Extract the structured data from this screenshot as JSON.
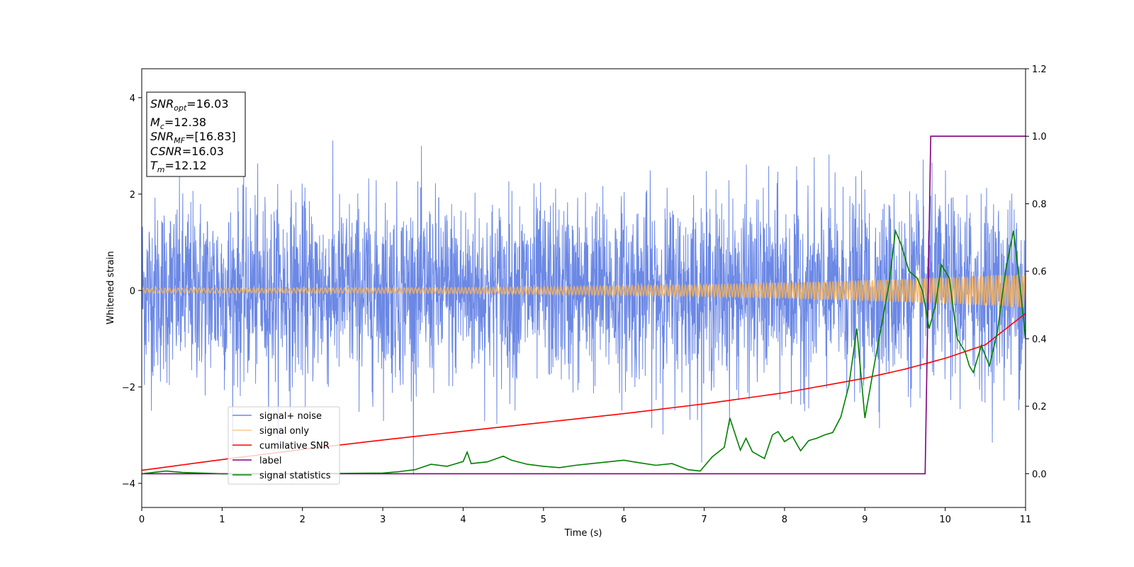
{
  "chart_data": {
    "type": "line",
    "title": "",
    "xlabel": "Time (s)",
    "ylabel": "Whitened strain",
    "xlim": [
      0,
      11
    ],
    "ylim": [
      -4.5,
      4.6
    ],
    "y2lim": [
      -0.1,
      1.2
    ],
    "xticks": [
      "0",
      "1",
      "2",
      "3",
      "4",
      "5",
      "6",
      "7",
      "8",
      "9",
      "10",
      "11"
    ],
    "yticks": [
      "4",
      "2",
      "0",
      "−2",
      "−4"
    ],
    "y2ticks": [
      "1.2",
      "1.0",
      "0.8",
      "0.6",
      "0.4",
      "0.2",
      "0.0"
    ],
    "grid": false,
    "legend_position": "lower-left",
    "colors": {
      "signal_noise": "#6b88e5",
      "signal_only": "#f5b25a",
      "cumulative_snr": "#ff0000",
      "label": "#800080",
      "signal_statistics": "#008000"
    },
    "series": [
      {
        "name": "signal+ noise",
        "axis": "left",
        "description_type": "noise",
        "amplitude_std": 0.95,
        "min": -4.1,
        "max": 4.15,
        "x_range": [
          0,
          11
        ]
      },
      {
        "name": "signal only",
        "axis": "left",
        "description_type": "chirp",
        "amplitude_start": 0.05,
        "amplitude_end": 0.35,
        "x_range": [
          0,
          11
        ]
      },
      {
        "name": "cumilative SNR",
        "axis": "right",
        "x": [
          0,
          1,
          2,
          3,
          4,
          5,
          6,
          7,
          8,
          9,
          9.5,
          10,
          10.5,
          11
        ],
        "y": [
          0.01,
          0.042,
          0.072,
          0.1,
          0.126,
          0.152,
          0.178,
          0.207,
          0.24,
          0.283,
          0.31,
          0.342,
          0.382,
          0.475
        ]
      },
      {
        "name": "label",
        "axis": "right",
        "x": [
          0,
          9.75,
          9.82,
          11
        ],
        "y": [
          0,
          0,
          1,
          1
        ]
      },
      {
        "name": "signal statistics",
        "axis": "right",
        "x": [
          0,
          0.3,
          0.5,
          1,
          2,
          3,
          3.2,
          3.4,
          3.6,
          3.8,
          4.0,
          4.05,
          4.1,
          4.3,
          4.5,
          4.6,
          4.8,
          5.0,
          5.2,
          5.4,
          5.6,
          5.8,
          6.0,
          6.2,
          6.4,
          6.6,
          6.8,
          6.95,
          7.1,
          7.25,
          7.32,
          7.45,
          7.52,
          7.6,
          7.75,
          7.85,
          7.92,
          8.0,
          8.1,
          8.2,
          8.3,
          8.4,
          8.5,
          8.6,
          8.7,
          8.8,
          8.9,
          9.0,
          9.1,
          9.2,
          9.3,
          9.38,
          9.45,
          9.55,
          9.65,
          9.72,
          9.8,
          9.88,
          9.95,
          10.05,
          10.15,
          10.25,
          10.3,
          10.35,
          10.45,
          10.55,
          10.65,
          10.75,
          10.85,
          10.92,
          11.0
        ],
        "y": [
          0.0,
          0.008,
          0.004,
          0.0,
          0.0,
          0.002,
          0.006,
          0.012,
          0.028,
          0.022,
          0.036,
          0.064,
          0.03,
          0.035,
          0.052,
          0.04,
          0.028,
          0.022,
          0.018,
          0.025,
          0.03,
          0.035,
          0.04,
          0.032,
          0.025,
          0.03,
          0.012,
          0.008,
          0.05,
          0.078,
          0.165,
          0.07,
          0.105,
          0.065,
          0.045,
          0.115,
          0.125,
          0.095,
          0.11,
          0.068,
          0.098,
          0.105,
          0.115,
          0.122,
          0.168,
          0.26,
          0.43,
          0.165,
          0.3,
          0.43,
          0.56,
          0.72,
          0.68,
          0.6,
          0.58,
          0.54,
          0.43,
          0.5,
          0.62,
          0.58,
          0.4,
          0.36,
          0.32,
          0.3,
          0.38,
          0.32,
          0.42,
          0.6,
          0.72,
          0.58,
          0.4
        ]
      }
    ],
    "stats": [
      {
        "name": "SNR",
        "sub": "opt",
        "value": "=16.03"
      },
      {
        "name": "M",
        "sub": "c",
        "value": "=12.38"
      },
      {
        "name": "SNR",
        "sub": "MF",
        "value": "=[16.83]"
      },
      {
        "name": "CSNR",
        "sub": "",
        "value": "=16.03"
      },
      {
        "name": "T",
        "sub": "m",
        "value": "=12.12"
      }
    ]
  }
}
